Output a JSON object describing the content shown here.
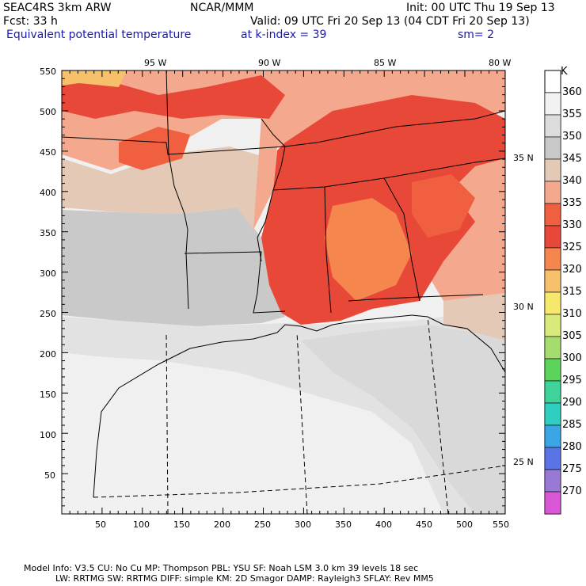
{
  "header": {
    "model": "SEAC4RS  3km ARW",
    "org": "NCAR/MMM",
    "init": "Init: 00 UTC Thu 19 Sep 13",
    "fcst": "Fcst:    33 h",
    "valid": "Valid: 09 UTC Fri 20 Sep 13 (04 CDT Fri 20 Sep 13)",
    "field": "Equivalent potential temperature",
    "level": "at k-index =  39",
    "smooth": "sm= 2"
  },
  "axes": {
    "x_ticks": [
      "50",
      "100",
      "150",
      "200",
      "250",
      "300",
      "350",
      "400",
      "450",
      "500",
      "550"
    ],
    "y_ticks": [
      "550",
      "500",
      "450",
      "400",
      "350",
      "300",
      "250",
      "200",
      "150",
      "100",
      "50"
    ],
    "lon_labels": [
      "95 W",
      "90 W",
      "85 W",
      "80 W"
    ],
    "lat_labels": [
      "35 N",
      "30 N",
      "25 N"
    ]
  },
  "colorbar": {
    "unit": "K",
    "levels": [
      {
        "label": "360",
        "color": "#f2f2f2"
      },
      {
        "label": "355",
        "color": "#dcdcdc"
      },
      {
        "label": "350",
        "color": "#c8c8c8"
      },
      {
        "label": "345",
        "color": "#e3c9b6"
      },
      {
        "label": "340",
        "color": "#f4a98f"
      },
      {
        "label": "335",
        "color": "#f06040"
      },
      {
        "label": "330",
        "color": "#e84838"
      },
      {
        "label": "325",
        "color": "#f5874e"
      },
      {
        "label": "320",
        "color": "#f7c06a"
      },
      {
        "label": "315",
        "color": "#f5e86a"
      },
      {
        "label": "310",
        "color": "#d9ea7a"
      },
      {
        "label": "305",
        "color": "#a4dc6e"
      },
      {
        "label": "300",
        "color": "#5cd35a"
      },
      {
        "label": "295",
        "color": "#3fd39a"
      },
      {
        "label": "290",
        "color": "#2ecfc0"
      },
      {
        "label": "285",
        "color": "#3aa6e6"
      },
      {
        "label": "280",
        "color": "#5a74e6"
      },
      {
        "label": "275",
        "color": "#9a78d6"
      },
      {
        "label": "270",
        "color": "#d957d6"
      }
    ]
  },
  "footer": {
    "line1": "Model Info: V3.5     CU: No Cu     MP: Thompson     PBL: YSU      SF: Noah LSM     3.0 km   39 levels   18 sec",
    "line2": "LW: RRTMG    SW: RRTMG  DIFF: simple KM: 2D Smagor DAMP: Rayleigh3  SFLAY: Rev MM5"
  }
}
